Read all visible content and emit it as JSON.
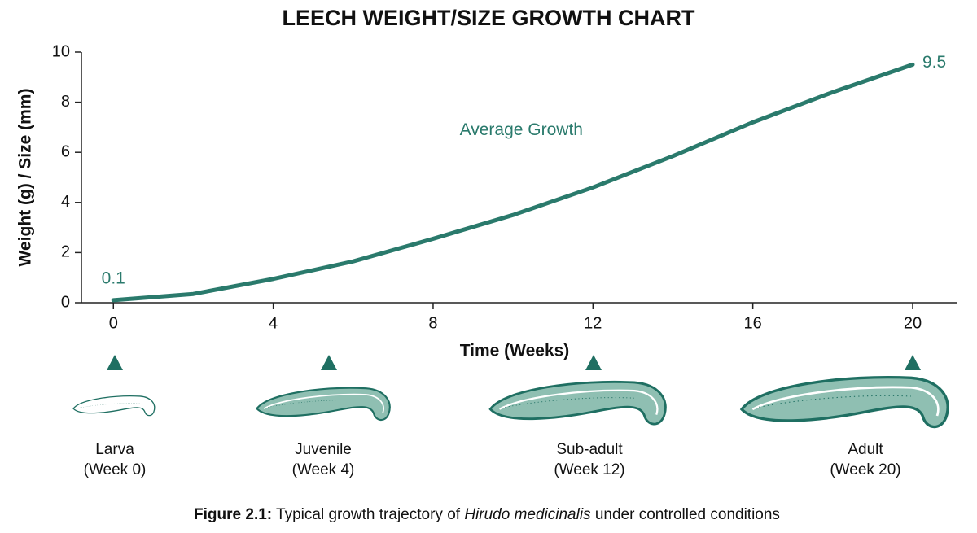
{
  "chart_data": {
    "type": "line",
    "title": "LEECH WEIGHT/SIZE GROWTH CHART",
    "x_label": "Time (Weeks)",
    "y_label": "Weight (g) / Size (mm)",
    "x": [
      0,
      2,
      4,
      6,
      8,
      10,
      12,
      14,
      16,
      18,
      20
    ],
    "series": [
      {
        "name": "Average Growth",
        "color": "#2a7a6c",
        "values": [
          0.1,
          0.35,
          0.95,
          1.65,
          2.55,
          3.5,
          4.6,
          5.85,
          7.2,
          8.4,
          9.5
        ]
      }
    ],
    "xlim": [
      -0.8,
      21.1
    ],
    "xticks": [
      0,
      4,
      8,
      12,
      16,
      20
    ],
    "ylim": [
      0,
      10
    ],
    "yticks": [
      0,
      2,
      4,
      6,
      8,
      10
    ],
    "stages": [
      {
        "name": "Larva",
        "week": "(Week 0)"
      },
      {
        "name": "Juvenile",
        "week": "(Week 4)"
      },
      {
        "name": "Sub-adult",
        "week": "(Week 12)"
      },
      {
        "name": "Adult",
        "week": "(Week 20)"
      }
    ],
    "caption": {
      "label": "Figure 2.1:",
      "text_before": " Typical growth trajectory of ",
      "species": "Hirudo medicinalis",
      "text_after": " under controlled conditions"
    }
  }
}
